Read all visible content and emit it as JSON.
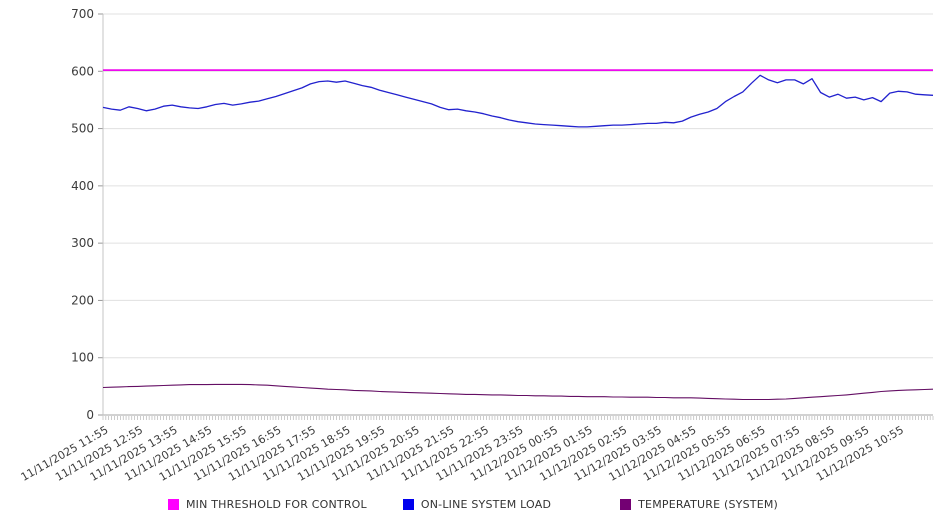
{
  "chart_data": {
    "type": "line",
    "title": "",
    "xlabel": "",
    "ylabel": "",
    "grid": "horizontal",
    "legend_position": "bottom",
    "y_axis": {
      "min": 0,
      "max": 700,
      "step": 100,
      "ticks": [
        "0",
        "100",
        "200",
        "300",
        "400",
        "500",
        "600",
        "700"
      ]
    },
    "x_labels": [
      "11/11/2025 11:55",
      "11/11/2025 12:55",
      "11/11/2025 13:55",
      "11/11/2025 14:55",
      "11/11/2025 15:55",
      "11/11/2025 16:55",
      "11/11/2025 17:55",
      "11/11/2025 18:55",
      "11/11/2025 19:55",
      "11/11/2025 20:55",
      "11/11/2025 21:55",
      "11/11/2025 22:55",
      "11/11/2025 23:55",
      "11/12/2025 00:55",
      "11/12/2025 01:55",
      "11/12/2025 02:55",
      "11/12/2025 03:55",
      "11/12/2025 04:55",
      "11/12/2025 05:55",
      "11/12/2025 06:55",
      "11/12/2025 07:55",
      "11/12/2025 08:55",
      "11/12/2025 09:55",
      "11/12/2025 10:55"
    ],
    "x_minor_ticks_per_hour": 12,
    "series": [
      {
        "name": "MIN THRESHOLD FOR CONTROL",
        "color": "#EE0AEE",
        "legend_color": "#FF00FF",
        "stroke_width": 1.8,
        "values": [
          602,
          602
        ]
      },
      {
        "name": "ON-LINE SYSTEM LOAD",
        "color": "#2222CE",
        "legend_color": "#0000EE",
        "stroke_width": 1.3,
        "values": [
          537,
          534,
          532,
          538,
          535,
          531,
          534,
          539,
          541,
          538,
          536,
          535,
          538,
          542,
          544,
          541,
          543,
          546,
          548,
          552,
          556,
          561,
          566,
          571,
          578,
          582,
          583,
          581,
          583,
          579,
          575,
          572,
          567,
          563,
          559,
          555,
          551,
          547,
          543,
          537,
          533,
          534,
          531,
          529,
          526,
          522,
          519,
          515,
          512,
          510,
          508,
          507,
          506,
          505,
          504,
          503,
          503,
          504,
          505,
          506,
          506,
          507,
          508,
          509,
          509,
          511,
          510,
          513,
          520,
          525,
          529,
          535,
          547,
          556,
          564,
          579,
          593,
          585,
          580,
          585,
          585,
          578,
          587,
          563,
          555,
          560,
          553,
          555,
          550,
          554,
          547,
          562,
          565,
          564,
          560,
          559,
          558
        ]
      },
      {
        "name": "TEMPERATURE (SYSTEM)",
        "color": "#640E64",
        "legend_color": "#730073",
        "stroke_width": 1.1,
        "values": [
          48,
          48.5,
          49,
          49.5,
          50,
          50.5,
          51,
          51.5,
          52,
          52.5,
          53,
          53,
          53,
          53.5,
          53.5,
          53.5,
          53.5,
          53,
          52.5,
          52,
          51,
          50,
          49,
          48,
          47,
          46,
          45,
          44.5,
          44,
          43,
          42.5,
          42,
          41,
          40.5,
          40,
          39.5,
          39,
          38.5,
          38,
          37.5,
          37,
          36.5,
          36,
          36,
          35.5,
          35,
          35,
          34.5,
          34,
          34,
          33.5,
          33.5,
          33,
          33,
          32.5,
          32.5,
          32,
          32,
          32,
          31.5,
          31.5,
          31,
          31,
          31,
          30.5,
          30.5,
          30,
          30,
          30,
          29.5,
          29,
          28.5,
          28,
          27.5,
          27,
          27,
          27,
          27,
          27.5,
          28,
          29,
          30,
          31,
          32,
          33,
          34,
          35,
          36.5,
          38,
          39.5,
          41,
          42,
          43,
          43.5,
          44,
          44.5,
          45
        ]
      }
    ],
    "colors": {
      "gridline": "#E0E0E0",
      "axis": "#A6A6A6",
      "tick": "#999999",
      "axis_label": "#3C3C3C"
    }
  },
  "legend": {
    "items": [
      {
        "label": "MIN THRESHOLD FOR CONTROL"
      },
      {
        "label": "ON-LINE SYSTEM LOAD"
      },
      {
        "label": "TEMPERATURE (SYSTEM)"
      }
    ]
  }
}
